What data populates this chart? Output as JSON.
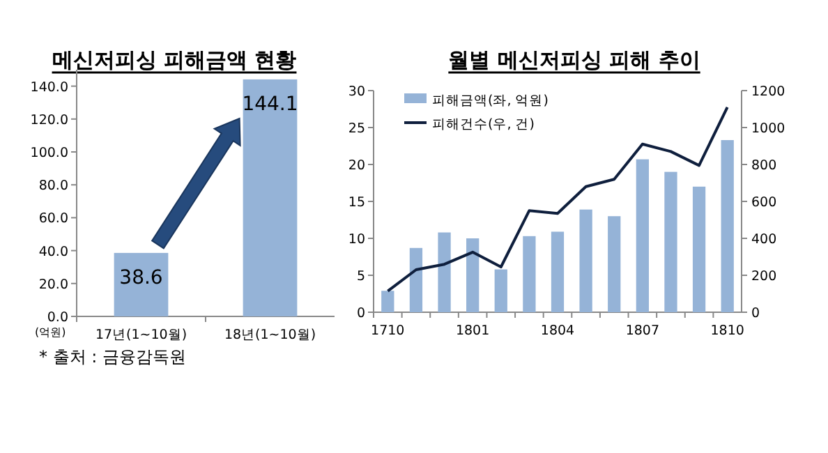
{
  "chart_data": [
    {
      "type": "bar",
      "title": "메신저피싱 피해금액 현황",
      "ylabel": "(억원)",
      "categories": [
        "17년(1~10월)",
        "18년(1~10월)"
      ],
      "values": [
        38.6,
        144.1
      ],
      "color": "#95b3d7",
      "data_labels": true,
      "ylim": [
        0,
        150
      ],
      "yticks": [
        {
          "value": 0,
          "label": "0.0"
        },
        {
          "value": 20,
          "label": "20.0"
        },
        {
          "value": 40,
          "label": "40.0"
        },
        {
          "value": 60,
          "label": "60.0"
        },
        {
          "value": 80,
          "label": "80.0"
        },
        {
          "value": 100,
          "label": "100.0"
        },
        {
          "value": 120,
          "label": "120.0"
        },
        {
          "value": 140,
          "label": "140.0"
        }
      ],
      "annotations": [
        "*  출처 : 금융감독원"
      ]
    },
    {
      "type": "bar",
      "title": "월별 메신저피싱 피해 추이",
      "categories": [
        "1710",
        null,
        null,
        "1801",
        null,
        null,
        "1804",
        null,
        null,
        "1807",
        null,
        null,
        "1810"
      ],
      "legend": "top left",
      "series": [
        {
          "name": "피해금액(좌, 억원)",
          "type": "bar",
          "color": "#95b3d7",
          "values": [
            2.9,
            8.7,
            10.8,
            10.0,
            5.8,
            10.3,
            10.9,
            13.9,
            13.0,
            20.7,
            19.0,
            17.0,
            23.3
          ]
        },
        {
          "name": "피해건수(우, 건)",
          "type": "line",
          "axis": "y2",
          "color": "#0f1f3d",
          "values": [
            115,
            230,
            260,
            325,
            245,
            550,
            535,
            680,
            720,
            910,
            870,
            795,
            1110
          ]
        }
      ],
      "ylim": [
        0,
        30
      ],
      "yticks": [
        0,
        5,
        10,
        15,
        20,
        25,
        30
      ],
      "y2lim": [
        0,
        1200
      ],
      "y2ticks": [
        0,
        200,
        400,
        600,
        800,
        1000,
        1200
      ]
    }
  ]
}
